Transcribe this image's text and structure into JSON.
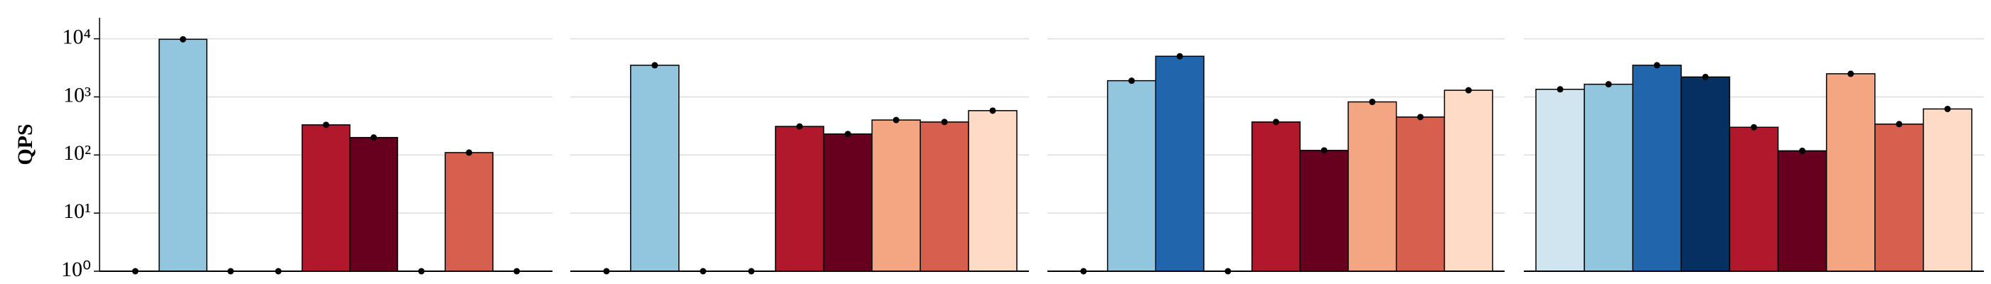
{
  "chart_data": [
    {
      "type": "bar",
      "ylabel": "QPS",
      "log_scale": true,
      "grid": true,
      "ylim": [
        1,
        23000
      ],
      "yticks": [
        {
          "value": 1,
          "label": "10⁰"
        },
        {
          "value": 10,
          "label": "10¹"
        },
        {
          "value": 100,
          "label": "10²"
        },
        {
          "value": 1000,
          "label": "10³"
        },
        {
          "value": 10000,
          "label": "10⁴"
        }
      ],
      "values": [
        1,
        9800,
        1,
        1,
        330,
        200,
        1,
        110,
        1
      ],
      "colors": [
        "#d1e5f0",
        "#92c5de",
        "#2166ac",
        "#053061",
        "#b2182b",
        "#67001f",
        "#f4a582",
        "#d6604d",
        "#fddbc7"
      ]
    },
    {
      "type": "bar",
      "log_scale": true,
      "grid": true,
      "ylim": [
        1,
        23000
      ],
      "values": [
        1,
        3500,
        1,
        1,
        310,
        230,
        400,
        370,
        580
      ],
      "colors": [
        "#d1e5f0",
        "#92c5de",
        "#2166ac",
        "#053061",
        "#b2182b",
        "#67001f",
        "#f4a582",
        "#d6604d",
        "#fddbc7"
      ]
    },
    {
      "type": "bar",
      "log_scale": true,
      "grid": true,
      "ylim": [
        1,
        23000
      ],
      "values": [
        1,
        1900,
        5000,
        1,
        370,
        120,
        820,
        450,
        1300
      ],
      "colors": [
        "#d1e5f0",
        "#92c5de",
        "#2166ac",
        "#053061",
        "#b2182b",
        "#67001f",
        "#f4a582",
        "#d6604d",
        "#fddbc7"
      ]
    },
    {
      "type": "bar",
      "log_scale": true,
      "grid": true,
      "ylim": [
        1,
        23000
      ],
      "values": [
        1350,
        1650,
        3500,
        2200,
        300,
        118,
        2500,
        340,
        620
      ],
      "colors": [
        "#d1e5f0",
        "#92c5de",
        "#2166ac",
        "#053061",
        "#b2182b",
        "#67001f",
        "#f4a582",
        "#d6604d",
        "#fddbc7"
      ]
    }
  ]
}
